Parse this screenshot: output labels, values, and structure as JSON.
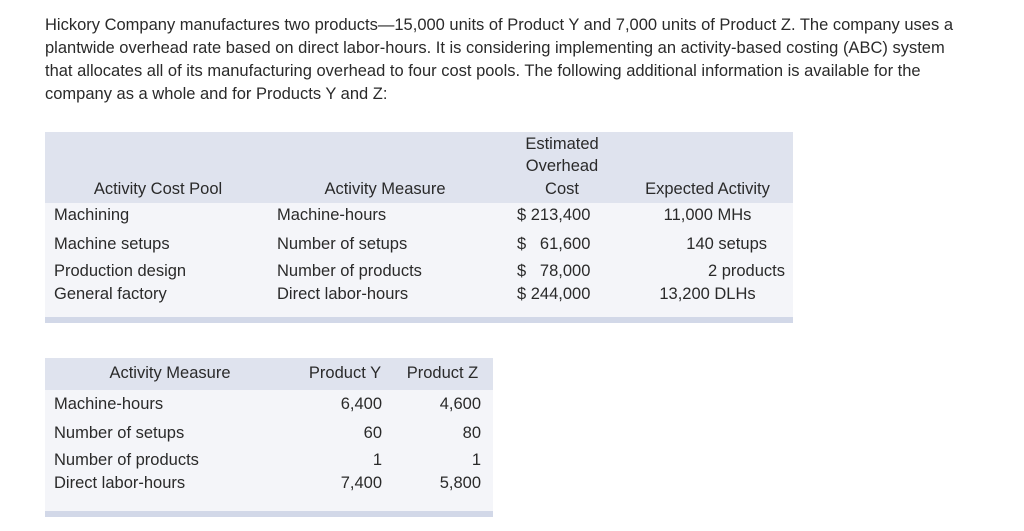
{
  "intro": "Hickory Company manufactures two products—15,000 units of Product Y and 7,000 units of Product Z. The company uses a plantwide overhead rate based on direct labor-hours. It is considering implementing an activity-based costing (ABC) system that allocates all of its manufacturing overhead to four cost pools. The following additional information is available for the company as a whole and for Products Y and Z:",
  "table1": {
    "headers": {
      "pool": "Activity Cost Pool",
      "measure": "Activity Measure",
      "cost_line1": "Estimated",
      "cost_line2": "Overhead",
      "cost_line3": "Cost",
      "activity": "Expected Activity"
    },
    "rows": [
      {
        "pool": "Machining",
        "measure": "Machine-hours",
        "cost": "$ 213,400",
        "activity": "11,000 MHs"
      },
      {
        "pool": "Machine setups",
        "measure": "Number of setups",
        "cost": "$   61,600",
        "activity": "140 setups"
      },
      {
        "pool": "Production design",
        "measure": "Number of products",
        "cost": "$   78,000",
        "activity": "2 products"
      },
      {
        "pool": "General factory",
        "measure": "Direct labor-hours",
        "cost": "$ 244,000",
        "activity": "13,200 DLHs"
      }
    ]
  },
  "table2": {
    "headers": {
      "measure": "Activity Measure",
      "product_y": "Product Y",
      "product_z": "Product Z"
    },
    "rows": [
      {
        "measure": "Machine-hours",
        "y": "6,400",
        "z": "4,600"
      },
      {
        "measure": "Number of setups",
        "y": "60",
        "z": "80"
      },
      {
        "measure": "Number of products",
        "y": "1",
        "z": "1"
      },
      {
        "measure": "Direct labor-hours",
        "y": "7,400",
        "z": "5,800"
      }
    ]
  }
}
